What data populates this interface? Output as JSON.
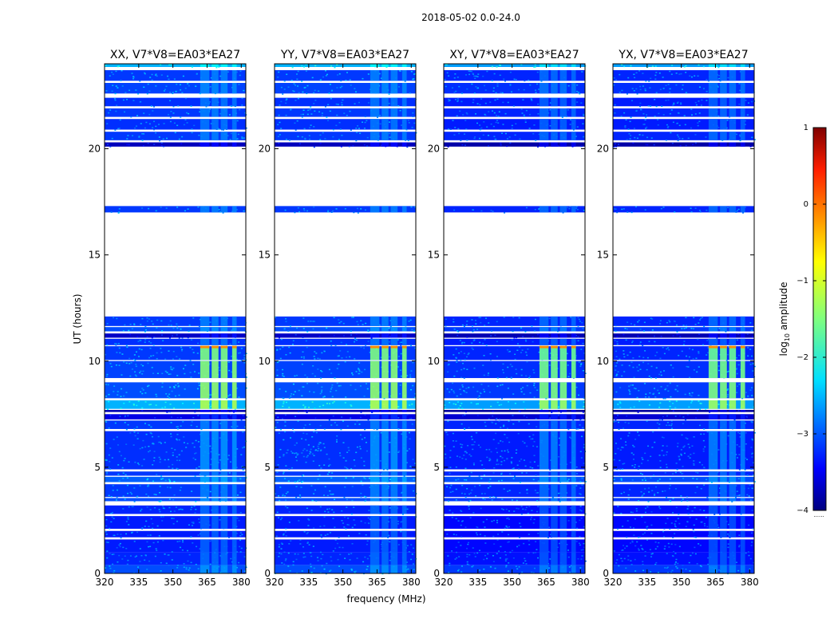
{
  "figure_title": "2018-05-02 0.0-24.0",
  "chart_data": {
    "type": "heatmap",
    "title": "2018-05-02 0.0-24.0",
    "xlabel": "frequency (MHz)",
    "ylabel": "UT (hours)",
    "xlim": [
      320,
      382
    ],
    "ylim": [
      0,
      24
    ],
    "x_ticks": [
      320,
      335,
      350,
      365,
      380
    ],
    "y_ticks": [
      0,
      5,
      10,
      15,
      20
    ],
    "panels": [
      {
        "title": "XX, V7*V8=EA03*EA27"
      },
      {
        "title": "YY, V7*V8=EA03*EA27"
      },
      {
        "title": "XY, V7*V8=EA03*EA27"
      },
      {
        "title": "YX, V7*V8=EA03*EA27"
      }
    ],
    "colorbar": {
      "label": "log10 amplitude",
      "label_main": "log",
      "label_sub": "10",
      "label_rest": " amplitude",
      "range": [
        -4,
        1
      ],
      "ticks": [
        1,
        0,
        -1,
        -2,
        -3,
        -4
      ],
      "colormap": "jet",
      "under_label": "......"
    },
    "blank_ut_ranges": [
      [
        12.1,
        17.0
      ],
      [
        17.3,
        20.1
      ]
    ],
    "rfi_band_mhz": [
      362,
      378
    ]
  }
}
